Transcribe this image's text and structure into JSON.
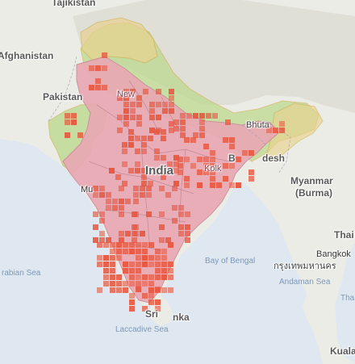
{
  "map": {
    "labels": {
      "tajikistan": "Tajikistan",
      "afghanistan": "Afghanistan",
      "pakistan": "Pakistan",
      "new_delhi": "New",
      "nepal_bhutan": "Bhuta",
      "india": "India",
      "kolkata": "Kolk",
      "bangladesh": "desh",
      "bangladesh_prefix": "B",
      "myanmar": "Myanmar",
      "burma": "(Burma)",
      "mumbai": "Mu",
      "thai": "Thai",
      "bangkok": "Bangkok",
      "bangkok_thai": "กรุงเทพมหานคร",
      "arabian_sea": "rabian Sea",
      "bay_of_bengal": "Bay of Bengal",
      "andaman_sea": "Andaman Sea",
      "sri_lanka_a": "Sri",
      "sri_lanka_b": "nka",
      "laccadive_sea": "Laccadive Sea",
      "kuala": "Kuala",
      "tha": "Tha"
    },
    "colors": {
      "land": "#ecece6",
      "water": "#dfe8f0",
      "india_fill": "#e9a7b4",
      "region_green": "#b9d98a",
      "region_yellow": "#e9d28f",
      "occurrence_cell": "#e8553d"
    }
  }
}
